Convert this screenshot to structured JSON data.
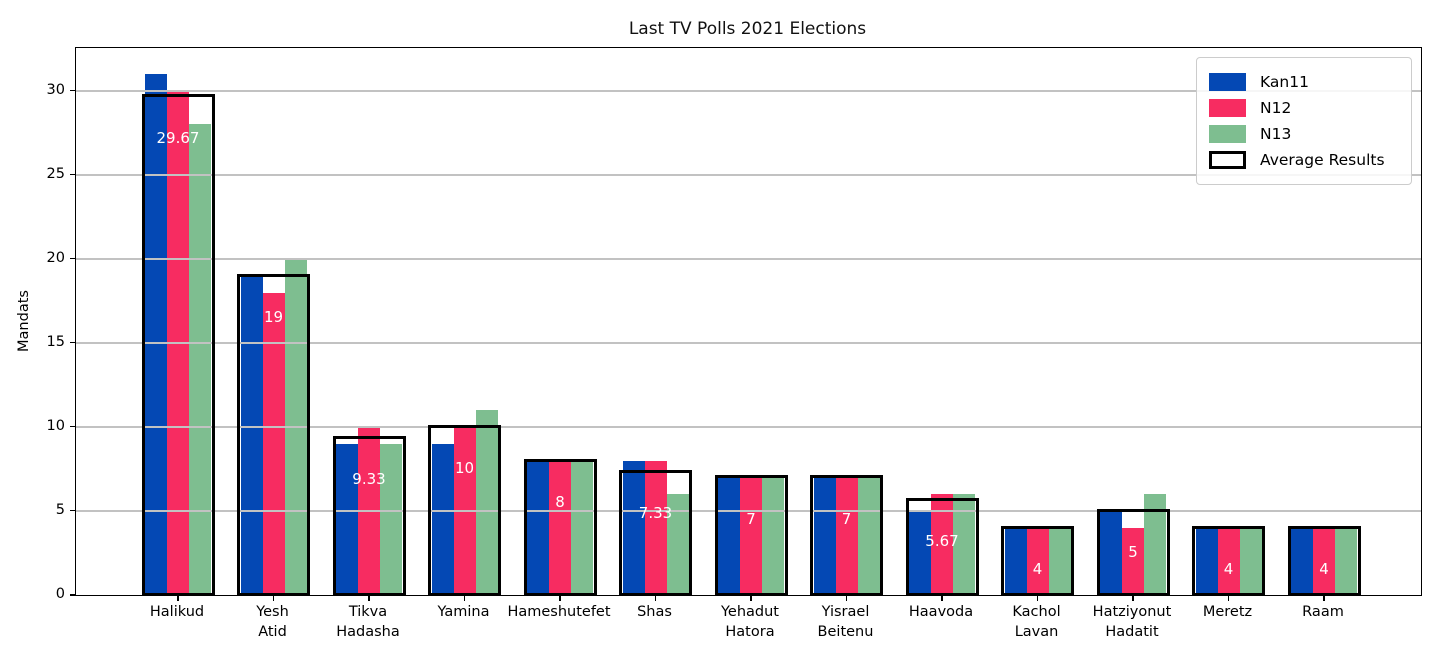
{
  "figure": {
    "title": "Last TV Polls 2021 Elections",
    "background": "#ffffff"
  },
  "chart_data": {
    "type": "bar",
    "title": "Last TV Polls 2021 Elections",
    "xlabel": "",
    "ylabel": "Mandats",
    "ylim": [
      0,
      32.55
    ],
    "yticks": [
      0,
      5,
      10,
      15,
      20,
      25,
      30
    ],
    "grid": "horizontal gridlines, drawn over bars",
    "legend_position": "upper right",
    "categories": [
      [
        "Halikud"
      ],
      [
        "Yesh",
        "Atid"
      ],
      [
        "Tikva",
        "Hadasha"
      ],
      [
        "Yamina"
      ],
      [
        "Hameshutefet"
      ],
      [
        "Shas"
      ],
      [
        "Yehadut",
        "Hatora"
      ],
      [
        "Yisrael",
        "Beitenu"
      ],
      [
        "Haavoda"
      ],
      [
        "Kachol",
        "Lavan"
      ],
      [
        "Hatziyonut",
        "Hadatit"
      ],
      [
        "Meretz"
      ],
      [
        "Raam"
      ]
    ],
    "series": [
      {
        "name": "Kan11",
        "color": "#0448b4",
        "values": [
          31,
          19,
          9,
          9,
          8,
          8,
          7,
          7,
          5,
          4,
          5,
          4,
          4
        ]
      },
      {
        "name": "N12",
        "color": "#f72c61",
        "values": [
          30,
          18,
          10,
          10,
          8,
          8,
          7,
          7,
          6,
          4,
          4,
          4,
          4
        ]
      },
      {
        "name": "N13",
        "color": "#7ebe90",
        "values": [
          28,
          20,
          9,
          11,
          8,
          6,
          7,
          7,
          6,
          4,
          6,
          4,
          4
        ]
      }
    ],
    "average_series": {
      "name": "Average Results",
      "style": "black-outline-rectangle",
      "values": [
        29.67,
        19,
        9.33,
        10,
        8,
        7.33,
        7,
        7,
        5.67,
        4,
        5,
        4,
        4
      ],
      "labels": [
        "29.67",
        "19",
        "9.33",
        "10",
        "8",
        "7.33",
        "7",
        "7",
        "5.67",
        "4",
        "5",
        "4",
        "4"
      ],
      "label_color": "#ffffff"
    },
    "legend_entries": [
      "Kan11",
      "N12",
      "N13",
      "Average Results"
    ]
  },
  "colors": {
    "grid": "#c2c2c2",
    "spine": "#000000",
    "average_outline": "#000000"
  }
}
